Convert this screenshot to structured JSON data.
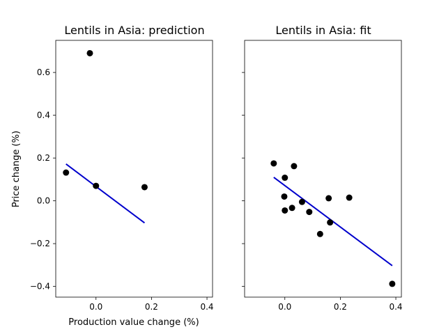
{
  "chart_data": [
    {
      "type": "scatter",
      "title": "Lentils in Asia: prediction",
      "xlabel": "Production value change (%)",
      "ylabel": "Price change (%)",
      "xlim": [
        -0.145,
        0.42
      ],
      "ylim": [
        -0.45,
        0.75
      ],
      "xticks": [
        "0.0",
        "0.2",
        "0.4"
      ],
      "xtick_values": [
        0.0,
        0.2,
        0.4
      ],
      "yticks": [
        "−0.4",
        "−0.2",
        "0.0",
        "0.2",
        "0.4",
        "0.6"
      ],
      "ytick_values": [
        -0.4,
        -0.2,
        0.0,
        0.2,
        0.4,
        0.6
      ],
      "points": [
        {
          "x": -0.108,
          "y": 0.132
        },
        {
          "x": -0.022,
          "y": 0.69
        },
        {
          "x": 0.0,
          "y": 0.07
        },
        {
          "x": 0.175,
          "y": 0.064
        }
      ],
      "fit_line": {
        "x": [
          -0.108,
          0.175
        ],
        "y": [
          0.172,
          -0.103
        ]
      },
      "point_color": "#000000",
      "line_color": "#0000cc"
    },
    {
      "type": "scatter",
      "title": "Lentils in Asia: fit",
      "xlabel": "",
      "ylabel": "",
      "xlim": [
        -0.145,
        0.42
      ],
      "ylim": [
        -0.45,
        0.75
      ],
      "xticks": [
        "0.0",
        "0.2",
        "0.4"
      ],
      "xtick_values": [
        0.0,
        0.2,
        0.4
      ],
      "yticks": [],
      "ytick_values": [
        -0.4,
        -0.2,
        0.0,
        0.2,
        0.4,
        0.6
      ],
      "points": [
        {
          "x": -0.04,
          "y": 0.175
        },
        {
          "x": -0.002,
          "y": 0.02
        },
        {
          "x": 0.0,
          "y": 0.108
        },
        {
          "x": 0.0,
          "y": -0.045
        },
        {
          "x": 0.026,
          "y": -0.033
        },
        {
          "x": 0.033,
          "y": 0.162
        },
        {
          "x": 0.062,
          "y": -0.005
        },
        {
          "x": 0.088,
          "y": -0.052
        },
        {
          "x": 0.127,
          "y": -0.155
        },
        {
          "x": 0.158,
          "y": 0.012
        },
        {
          "x": 0.163,
          "y": -0.101
        },
        {
          "x": 0.232,
          "y": 0.015
        },
        {
          "x": 0.387,
          "y": -0.388
        }
      ],
      "fit_line": {
        "x": [
          -0.04,
          0.387
        ],
        "y": [
          0.11,
          -0.303
        ]
      },
      "point_color": "#000000",
      "line_color": "#0000cc"
    }
  ]
}
